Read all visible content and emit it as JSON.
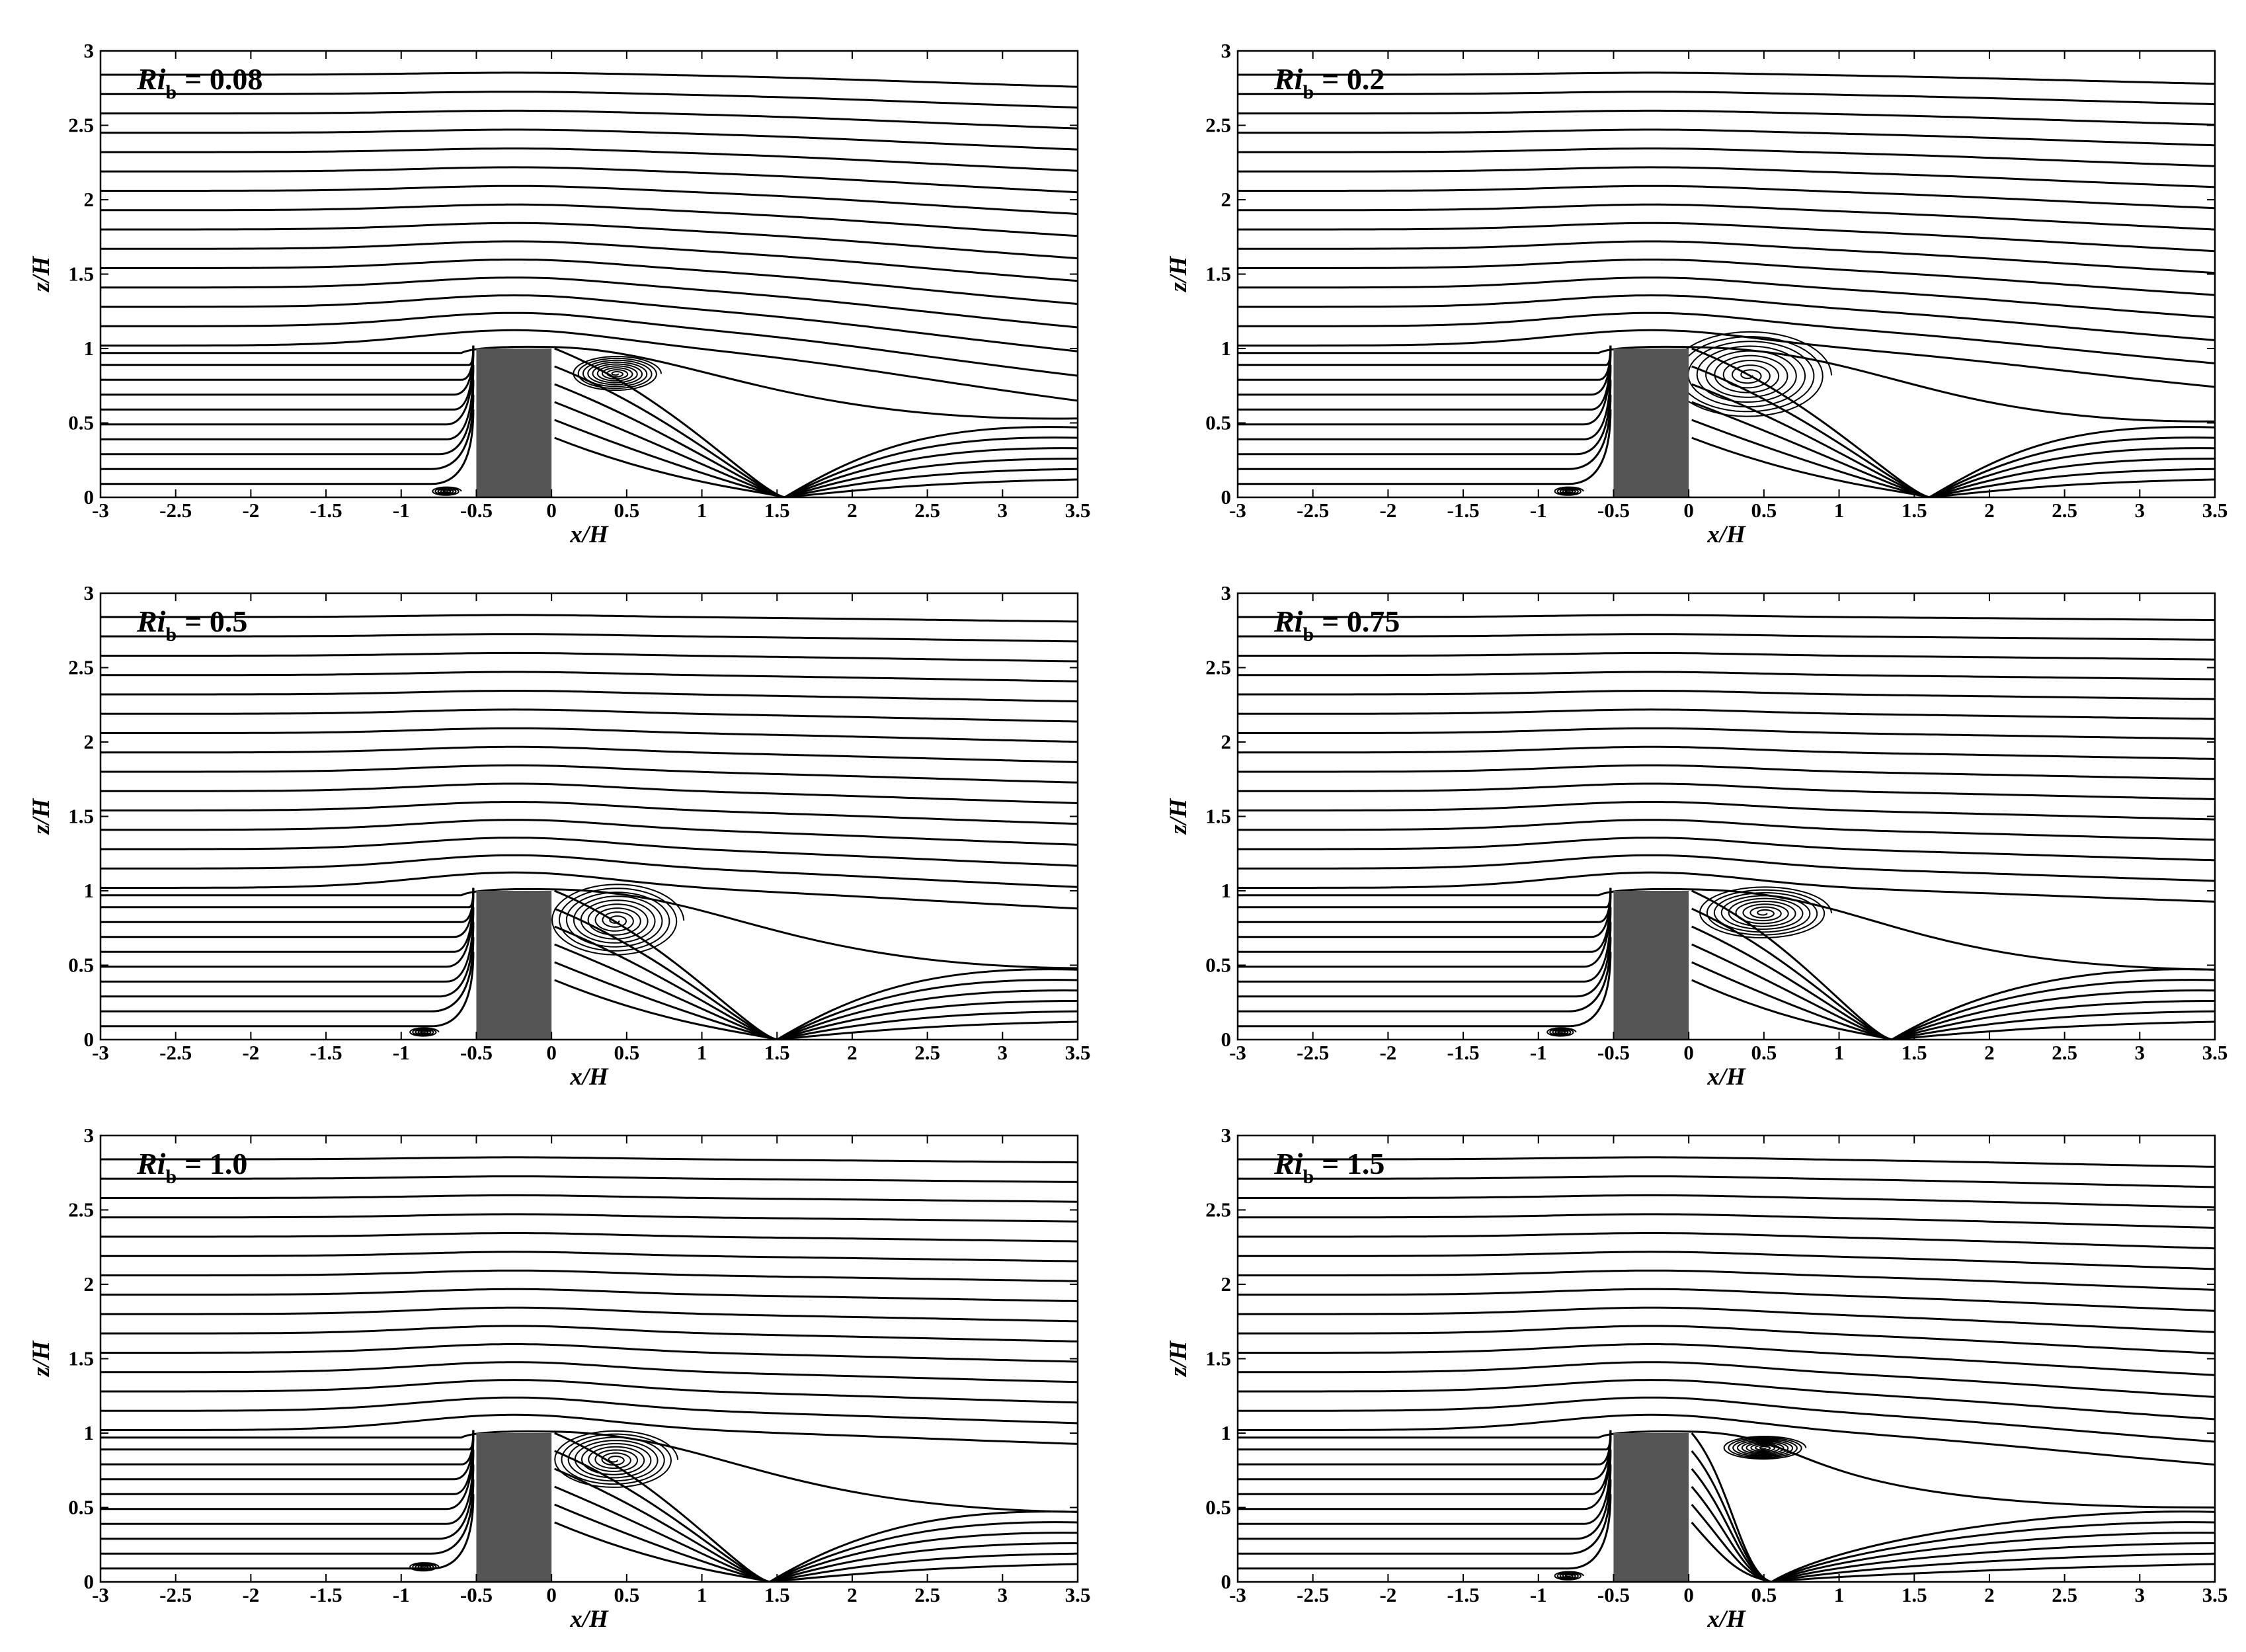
{
  "figure": {
    "background": "#ffffff",
    "line_color": "#000000",
    "block_color": "#555555"
  },
  "chart_data": [
    {
      "type": "streamline",
      "panel_label": {
        "prefix": "Ri",
        "subscript": "b",
        "value": "= 0.08"
      },
      "xlabel": "x/H",
      "ylabel": "z/H",
      "xlim": [
        -3,
        3.5
      ],
      "ylim": [
        0,
        3
      ],
      "xticks": [
        "-3",
        "-2.5",
        "-2",
        "-1.5",
        "-1",
        "-0.5",
        "0",
        "0.5",
        "1",
        "1.5",
        "2",
        "2.5",
        "3",
        "3.5"
      ],
      "yticks": [
        "0",
        "0.5",
        "1",
        "1.5",
        "2",
        "2.5",
        "3"
      ],
      "block": {
        "x": [
          -0.5,
          0
        ],
        "z": [
          0,
          1
        ]
      },
      "recirculation": {
        "center": [
          0.43,
          0.83
        ],
        "radius_x": 0.3,
        "radius_z": 0.12,
        "reattachment_x": 1.55
      },
      "upstream_vortex": {
        "center": [
          -0.7,
          0.04
        ]
      },
      "far_field_drop": 0.4
    },
    {
      "type": "streamline",
      "panel_label": {
        "prefix": "Ri",
        "subscript": "b",
        "value": "= 0.2"
      },
      "xlabel": "x/H",
      "ylabel": "z/H",
      "xlim": [
        -3,
        3.5
      ],
      "ylim": [
        0,
        3
      ],
      "xticks": [
        "-3",
        "-2.5",
        "-2",
        "-1.5",
        "-1",
        "-0.5",
        "0",
        "0.5",
        "1",
        "1.5",
        "2",
        "2.5",
        "3",
        "3.5"
      ],
      "yticks": [
        "0",
        "0.5",
        "1",
        "1.5",
        "2",
        "2.5",
        "3"
      ],
      "block": {
        "x": [
          -0.5,
          0
        ],
        "z": [
          0,
          1
        ]
      },
      "recirculation": {
        "center": [
          0.4,
          0.82
        ],
        "radius_x": 0.55,
        "radius_z": 0.3,
        "reattachment_x": 1.6
      },
      "upstream_vortex": {
        "center": [
          -0.8,
          0.04
        ]
      },
      "far_field_drop": 0.3
    },
    {
      "type": "streamline",
      "panel_label": {
        "prefix": "Ri",
        "subscript": "b",
        "value": "= 0.5"
      },
      "xlabel": "x/H",
      "ylabel": "z/H",
      "xlim": [
        -3,
        3.5
      ],
      "ylim": [
        0,
        3
      ],
      "xticks": [
        "-3",
        "-2.5",
        "-2",
        "-1.5",
        "-1",
        "-0.5",
        "0",
        "0.5",
        "1",
        "1.5",
        "2",
        "2.5",
        "3",
        "3.5"
      ],
      "yticks": [
        "0",
        "0.5",
        "1",
        "1.5",
        "2",
        "2.5",
        "3"
      ],
      "block": {
        "x": [
          -0.5,
          0
        ],
        "z": [
          0,
          1
        ]
      },
      "recirculation": {
        "center": [
          0.43,
          0.8
        ],
        "radius_x": 0.45,
        "radius_z": 0.25,
        "reattachment_x": 1.5
      },
      "upstream_vortex": {
        "center": [
          -0.85,
          0.05
        ]
      },
      "far_field_drop": 0.15
    },
    {
      "type": "streamline",
      "panel_label": {
        "prefix": "Ri",
        "subscript": "b",
        "value": "= 0.75"
      },
      "xlabel": "x/H",
      "ylabel": "z/H",
      "xlim": [
        -3,
        3.5
      ],
      "ylim": [
        0,
        3
      ],
      "xticks": [
        "-3",
        "-2.5",
        "-2",
        "-1.5",
        "-1",
        "-0.5",
        "0",
        "0.5",
        "1",
        "1.5",
        "2",
        "2.5",
        "3",
        "3.5"
      ],
      "yticks": [
        "0",
        "0.5",
        "1",
        "1.5",
        "2",
        "2.5",
        "3"
      ],
      "block": {
        "x": [
          -0.5,
          0
        ],
        "z": [
          0,
          1
        ]
      },
      "recirculation": {
        "center": [
          0.5,
          0.85
        ],
        "radius_x": 0.45,
        "radius_z": 0.18,
        "reattachment_x": 1.35
      },
      "upstream_vortex": {
        "center": [
          -0.85,
          0.05
        ]
      },
      "far_field_drop": 0.1
    },
    {
      "type": "streamline",
      "panel_label": {
        "prefix": "Ri",
        "subscript": "b",
        "value": "= 1.0"
      },
      "xlabel": "x/H",
      "ylabel": "z/H",
      "xlim": [
        -3,
        3.5
      ],
      "ylim": [
        0,
        3
      ],
      "xticks": [
        "-3",
        "-2.5",
        "-2",
        "-1.5",
        "-1",
        "-0.5",
        "0",
        "0.5",
        "1",
        "1.5",
        "2",
        "2.5",
        "3",
        "3.5"
      ],
      "yticks": [
        "0",
        "0.5",
        "1",
        "1.5",
        "2",
        "2.5",
        "3"
      ],
      "block": {
        "x": [
          -0.5,
          0
        ],
        "z": [
          0,
          1
        ]
      },
      "recirculation": {
        "center": [
          0.42,
          0.82
        ],
        "radius_x": 0.42,
        "radius_z": 0.2,
        "reattachment_x": 1.45
      },
      "upstream_vortex": {
        "center": [
          -0.85,
          0.1
        ]
      },
      "far_field_drop": 0.1
    },
    {
      "type": "streamline",
      "panel_label": {
        "prefix": "Ri",
        "subscript": "b",
        "value": "= 1.5"
      },
      "xlabel": "x/H",
      "ylabel": "z/H",
      "xlim": [
        -3,
        3.5
      ],
      "ylim": [
        0,
        3
      ],
      "xticks": [
        "-3",
        "-2.5",
        "-2",
        "-1.5",
        "-1",
        "-0.5",
        "0",
        "0.5",
        "1",
        "1.5",
        "2",
        "2.5",
        "3",
        "3.5"
      ],
      "yticks": [
        "0",
        "0.5",
        "1",
        "1.5",
        "2",
        "2.5",
        "3"
      ],
      "block": {
        "x": [
          -0.5,
          0
        ],
        "z": [
          0,
          1
        ]
      },
      "recirculation": {
        "center": [
          0.5,
          0.9
        ],
        "radius_x": 0.28,
        "radius_z": 0.08,
        "reattachment_x": 0.55
      },
      "upstream_vortex": {
        "center": [
          -0.8,
          0.04
        ]
      },
      "far_field_drop": 0.25
    }
  ]
}
